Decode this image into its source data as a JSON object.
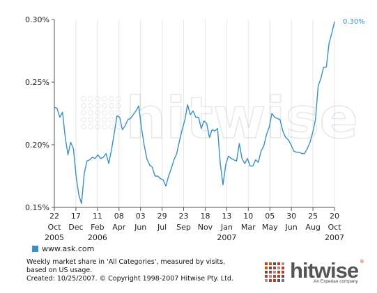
{
  "chart_data": {
    "type": "line",
    "series": [
      {
        "name": "www.ask.com",
        "color": "#3a8fc4",
        "values": [
          0.23,
          0.229,
          0.222,
          0.226,
          0.206,
          0.192,
          0.202,
          0.197,
          0.175,
          0.16,
          0.153,
          0.177,
          0.187,
          0.188,
          0.19,
          0.189,
          0.192,
          0.189,
          0.19,
          0.193,
          0.185,
          0.196,
          0.209,
          0.223,
          0.222,
          0.212,
          0.215,
          0.22,
          0.221,
          0.224,
          0.227,
          0.231,
          0.214,
          0.2,
          0.189,
          0.184,
          0.182,
          0.175,
          0.175,
          0.173,
          0.172,
          0.167,
          0.175,
          0.181,
          0.188,
          0.193,
          0.203,
          0.212,
          0.22,
          0.232,
          0.224,
          0.227,
          0.222,
          0.222,
          0.213,
          0.219,
          0.217,
          0.206,
          0.212,
          0.211,
          0.213,
          0.185,
          0.168,
          0.184,
          0.191,
          0.189,
          0.188,
          0.187,
          0.201,
          0.189,
          0.185,
          0.189,
          0.183,
          0.183,
          0.188,
          0.186,
          0.195,
          0.199,
          0.208,
          0.214,
          0.225,
          0.222,
          0.221,
          0.22,
          0.211,
          0.206,
          0.204,
          0.2,
          0.195,
          0.194,
          0.194,
          0.193,
          0.193,
          0.197,
          0.202,
          0.21,
          0.22,
          0.247,
          0.253,
          0.262,
          0.262,
          0.281,
          0.289,
          0.298
        ]
      }
    ],
    "ylim": [
      0.15,
      0.3
    ],
    "yticks": [
      0.15,
      0.2,
      0.25,
      0.3
    ],
    "ytick_labels": [
      "0.15%",
      "0.20%",
      "0.25%",
      "0.30%"
    ],
    "xtick_labels": [
      {
        "day": "22",
        "month": "Oct",
        "year": "2005"
      },
      {
        "day": "17",
        "month": "Dec",
        "year": ""
      },
      {
        "day": "11",
        "month": "Feb",
        "year": "2006"
      },
      {
        "day": "08",
        "month": "Apr",
        "year": ""
      },
      {
        "day": "03",
        "month": "Jun",
        "year": ""
      },
      {
        "day": "29",
        "month": "Jul",
        "year": ""
      },
      {
        "day": "23",
        "month": "Sep",
        "year": ""
      },
      {
        "day": "18",
        "month": "Nov",
        "year": ""
      },
      {
        "day": "13",
        "month": "Jan",
        "year": "2007"
      },
      {
        "day": "10",
        "month": "Mar",
        "year": ""
      },
      {
        "day": "05",
        "month": "May",
        "year": ""
      },
      {
        "day": "30",
        "month": "Jun",
        "year": ""
      },
      {
        "day": "25",
        "month": "Aug",
        "year": ""
      },
      {
        "day": "20",
        "month": "Oct",
        "year": "2007"
      }
    ],
    "end_label": "0.30%",
    "grid": "vertical",
    "watermark": "hitwise"
  },
  "legend": {
    "label": "www.ask.com",
    "color": "#3a8fc4"
  },
  "caption": {
    "line1": "Weekly market share in 'All Categories', measured by visits,",
    "line2": "based on US usage.",
    "line3": "Created: 10/25/2007. © Copyright 1998-2007 Hitwise Pty. Ltd."
  },
  "brand": {
    "name": "hitwise",
    "reg": "®",
    "tagline": "An Experian company"
  }
}
